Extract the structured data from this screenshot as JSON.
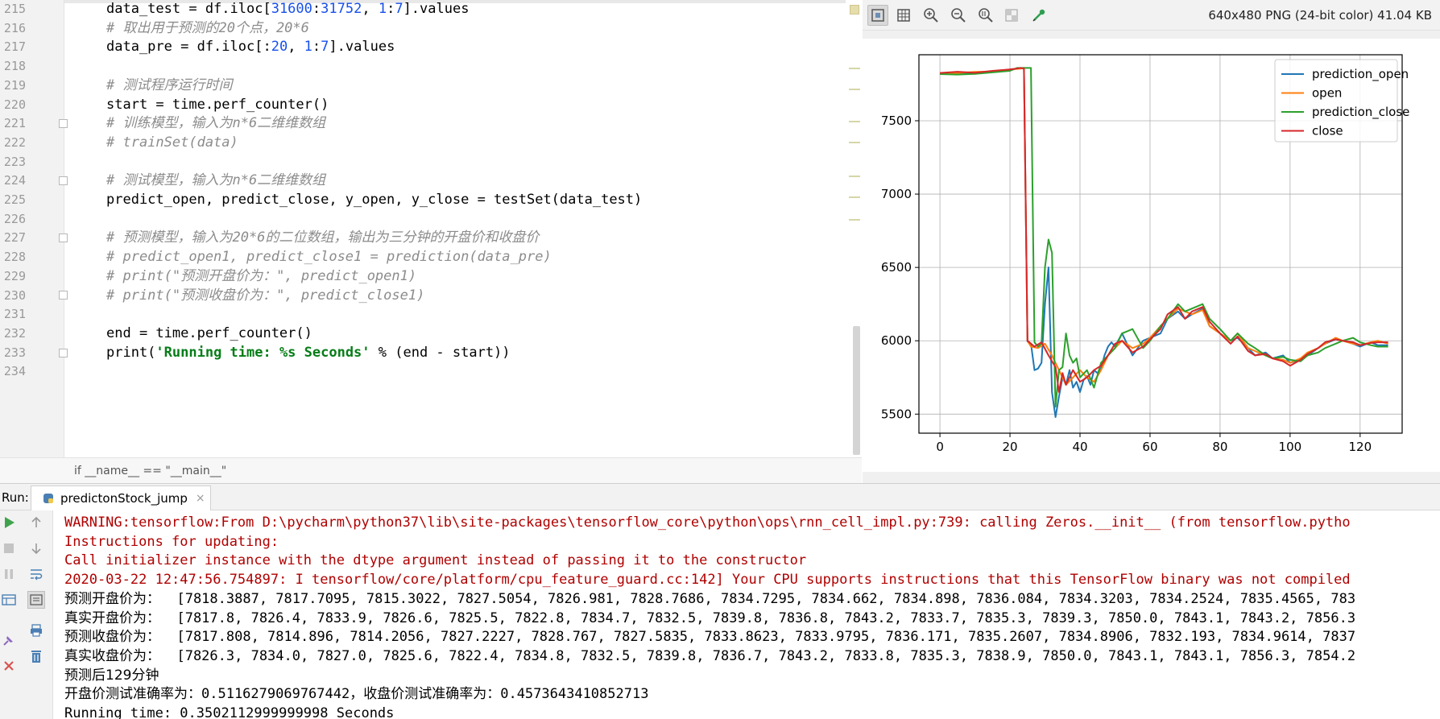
{
  "editor": {
    "line_numbers": [
      "215",
      "216",
      "217",
      "218",
      "219",
      "220",
      "221",
      "222",
      "223",
      "224",
      "225",
      "226",
      "227",
      "228",
      "229",
      "230",
      "231",
      "232",
      "233",
      "234"
    ],
    "breadcrumb": "if __name__ == \"__main__\"",
    "code": {
      "l215": {
        "a": "data_test = df.iloc[",
        "n1": "31600",
        "b": ":",
        "n2": "31752",
        "c": ", ",
        "n3": "1",
        "d": ":",
        "n4": "7",
        "e": "].values"
      },
      "l216": "# 取出用于预测的20个点，20*6",
      "l217": {
        "a": "data_pre = df.iloc[:",
        "n1": "20",
        "b": ", ",
        "n2": "1",
        "c": ":",
        "n3": "7",
        "d": "].values"
      },
      "l219": "# 测试程序运行时间",
      "l220": "start = time.perf_counter()",
      "l221": "# 训练模型，输入为n*6二维维数组",
      "l222": "# trainSet(data)",
      "l224": "# 测试模型，输入为n*6二维维数组",
      "l225": "predict_open, predict_close, y_open, y_close = testSet(data_test)",
      "l227": "# 预测模型，输入为20*6的二位数组，输出为三分钟的开盘价和收盘价",
      "l228": "# predict_open1, predict_close1 = prediction(data_pre)",
      "l229": "# print(\"预测开盘价为：\", predict_open1)",
      "l230": "# print(\"预测收盘价为：\", predict_close1)",
      "l232": "end = time.perf_counter()",
      "l233": {
        "a": "print(",
        "s": "'Running time: %s Seconds'",
        "b": " % (end - start))"
      }
    }
  },
  "viewer": {
    "image_info": "640x480 PNG (24-bit color) 41.04 KB",
    "toolbar_icons": [
      "fit-to-window-icon",
      "grid-icon",
      "zoom-in-icon",
      "zoom-out-icon",
      "actual-size-icon",
      "chessboard-icon",
      "color-picker-icon"
    ]
  },
  "chart_data": {
    "type": "line",
    "title": "",
    "xlabel": "",
    "ylabel": "",
    "xlim": [
      -6,
      132
    ],
    "ylim": [
      5370,
      7950
    ],
    "xticks": [
      0,
      20,
      40,
      60,
      80,
      100,
      120
    ],
    "yticks": [
      5500,
      6000,
      6500,
      7000,
      7500
    ],
    "grid": true,
    "legend_position": "top-right",
    "series": [
      {
        "name": "prediction_open",
        "color": "#1f77b4",
        "x": [
          0,
          5,
          10,
          15,
          20,
          24,
          25,
          26,
          27,
          28,
          29,
          30,
          31,
          32,
          33,
          34,
          35,
          36,
          37,
          38,
          39,
          40,
          41,
          42,
          43,
          44,
          45,
          46,
          47,
          48,
          49,
          50,
          52,
          55,
          58,
          60,
          63,
          65,
          68,
          70,
          72,
          75,
          77,
          80,
          83,
          85,
          88,
          90,
          93,
          95,
          98,
          100,
          103,
          105,
          108,
          110,
          113,
          115,
          118,
          120,
          123,
          125,
          128
        ],
        "y": [
          7818,
          7820,
          7828,
          7832,
          7850,
          7860,
          5995,
          5980,
          5800,
          5810,
          5850,
          6250,
          6500,
          5650,
          5480,
          5620,
          5750,
          5700,
          5800,
          5680,
          5720,
          5650,
          5730,
          5760,
          5700,
          5800,
          5780,
          5810,
          5900,
          5960,
          5990,
          5960,
          6050,
          5900,
          6000,
          6020,
          6050,
          6150,
          6200,
          6150,
          6180,
          6220,
          6100,
          6050,
          6000,
          6020,
          5950,
          5900,
          5920,
          5880,
          5900,
          5850,
          5870,
          5900,
          5950,
          5980,
          6010,
          6000,
          5980,
          5960,
          5990,
          5970,
          5970
        ]
      },
      {
        "name": "open",
        "color": "#ff7f0e",
        "x": [
          0,
          5,
          10,
          15,
          20,
          23,
          24,
          25,
          26,
          28,
          30,
          32,
          34,
          36,
          38,
          40,
          42,
          44,
          46,
          48,
          50,
          52,
          55,
          58,
          60,
          63,
          65,
          68,
          70,
          72,
          75,
          77,
          80,
          83,
          85,
          88,
          90,
          93,
          95,
          98,
          100,
          103,
          105,
          108,
          110,
          113,
          115,
          118,
          120,
          123,
          125,
          128
        ],
        "y": [
          7818,
          7826,
          7833,
          7835,
          7850,
          7855,
          7860,
          6000,
          5960,
          5950,
          5980,
          5900,
          5800,
          5700,
          5750,
          5800,
          5750,
          5720,
          5800,
          5900,
          5950,
          6000,
          5950,
          5980,
          6020,
          6100,
          6150,
          6220,
          6200,
          6180,
          6210,
          6100,
          6050,
          6000,
          6050,
          5950,
          5930,
          5900,
          5880,
          5870,
          5850,
          5880,
          5920,
          5950,
          5980,
          6020,
          6000,
          5980,
          5970,
          5990,
          6000,
          5980
        ]
      },
      {
        "name": "prediction_close",
        "color": "#2ca02c",
        "x": [
          0,
          5,
          10,
          15,
          20,
          22,
          26,
          27,
          28,
          29,
          30,
          31,
          32,
          33,
          34,
          35,
          36,
          37,
          38,
          39,
          40,
          42,
          44,
          46,
          48,
          50,
          52,
          55,
          58,
          60,
          63,
          65,
          68,
          70,
          72,
          75,
          77,
          80,
          83,
          85,
          88,
          90,
          93,
          95,
          98,
          100,
          103,
          105,
          108,
          110,
          113,
          115,
          118,
          120,
          123,
          125,
          128
        ],
        "y": [
          7818,
          7815,
          7820,
          7830,
          7840,
          7860,
          7860,
          5990,
          5960,
          5980,
          6500,
          6690,
          6600,
          5550,
          5800,
          5820,
          6050,
          5900,
          5850,
          5880,
          5750,
          5800,
          5680,
          5850,
          5900,
          5950,
          6050,
          6080,
          5950,
          6000,
          6100,
          6150,
          6250,
          6200,
          6220,
          6250,
          6150,
          6080,
          6000,
          6050,
          5980,
          5950,
          5900,
          5880,
          5890,
          5870,
          5860,
          5900,
          5920,
          5950,
          5980,
          6000,
          6020,
          5990,
          5970,
          5960,
          5960
        ]
      },
      {
        "name": "close",
        "color": "#d62728",
        "x": [
          0,
          5,
          10,
          15,
          20,
          22,
          23,
          24,
          25,
          27,
          29,
          31,
          33,
          34,
          35,
          36,
          38,
          40,
          42,
          44,
          46,
          48,
          50,
          52,
          55,
          58,
          60,
          63,
          65,
          68,
          70,
          72,
          75,
          77,
          80,
          83,
          85,
          88,
          90,
          93,
          95,
          98,
          100,
          103,
          105,
          108,
          110,
          113,
          115,
          118,
          120,
          123,
          125,
          128
        ],
        "y": [
          7826,
          7834,
          7827,
          7840,
          7850,
          7856,
          7860,
          7856,
          6000,
          5960,
          5990,
          5900,
          5820,
          5650,
          5780,
          5700,
          5800,
          5720,
          5750,
          5800,
          5830,
          5900,
          5980,
          6000,
          5920,
          5960,
          6010,
          6080,
          6180,
          6230,
          6150,
          6200,
          6230,
          6130,
          6050,
          5980,
          6030,
          5930,
          5900,
          5910,
          5880,
          5860,
          5830,
          5870,
          5910,
          5950,
          5990,
          6010,
          6000,
          5990,
          5970,
          5985,
          5990,
          5990
        ]
      }
    ]
  },
  "run_panel": {
    "label": "Run:",
    "tab_title": "predictonStock_jump",
    "tab_close": "×",
    "console_lines": [
      {
        "type": "err",
        "text": "WARNING:tensorflow:From D:\\pycharm\\python37\\lib\\site-packages\\tensorflow_core\\python\\ops\\rnn_cell_impl.py:739: calling Zeros.__init__ (from tensorflow.pytho"
      },
      {
        "type": "err",
        "text": "Instructions for updating:"
      },
      {
        "type": "err",
        "text": "Call initializer instance with the dtype argument instead of passing it to the constructor"
      },
      {
        "type": "err",
        "text": "2020-03-22 12:47:56.754897: I tensorflow/core/platform/cpu_feature_guard.cc:142] Your CPU supports instructions that this TensorFlow binary was not compiled"
      },
      {
        "type": "out",
        "label": "预测开盘价为：",
        "text": "  [7818.3887, 7817.7095, 7815.3022, 7827.5054, 7826.981, 7828.7686, 7834.7295, 7834.662, 7834.898, 7836.084, 7834.3203, 7834.2524, 7835.4565, 783"
      },
      {
        "type": "out",
        "label": "真实开盘价为：",
        "text": "  [7817.8, 7826.4, 7833.9, 7826.6, 7825.5, 7822.8, 7834.7, 7832.5, 7839.8, 7836.8, 7843.2, 7833.7, 7835.3, 7839.3, 7850.0, 7843.1, 7843.2, 7856.3"
      },
      {
        "type": "out",
        "label": "预测收盘价为：",
        "text": "  [7817.808, 7814.896, 7814.2056, 7827.2227, 7828.767, 7827.5835, 7833.8623, 7833.9795, 7836.171, 7835.2607, 7834.8906, 7832.193, 7834.9614, 7837"
      },
      {
        "type": "out",
        "label": "真实收盘价为：",
        "text": "  [7826.3, 7834.0, 7827.0, 7825.6, 7822.4, 7834.8, 7832.5, 7839.8, 7836.7, 7843.2, 7833.8, 7835.3, 7838.9, 7850.0, 7843.1, 7843.1, 7856.3, 7854.2"
      },
      {
        "type": "out",
        "label": "预测后129分钟",
        "text": ""
      },
      {
        "type": "out",
        "label": "开盘价测试准确率为：",
        "text": "0.5116279069767442，收盘价测试准确率为：0.4573643410852713"
      },
      {
        "type": "out",
        "label": "",
        "text": "Running time: 0.3502112999999998 Seconds"
      }
    ]
  }
}
